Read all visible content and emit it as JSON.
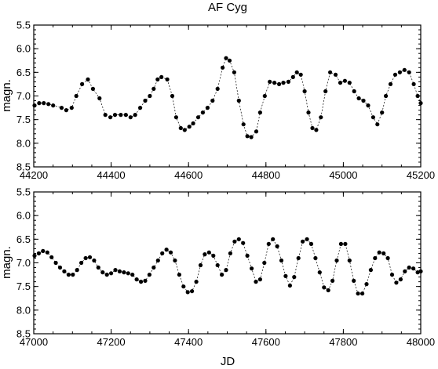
{
  "chart_data": [
    {
      "type": "scatter",
      "title": "AF Cyg",
      "xlabel": "",
      "ylabel": "magn.",
      "xlim": [
        44200,
        45200
      ],
      "ylim": [
        8.5,
        5.5
      ],
      "y_inverted": true,
      "xticks": [
        44200,
        44400,
        44600,
        44800,
        45000,
        45200
      ],
      "yticks": [
        "5.5",
        "6.0",
        "6.5",
        "7.0",
        "7.5",
        "8.0",
        "8.5"
      ],
      "connected": true,
      "grid": false,
      "series": [
        {
          "x": [
            44202,
            44214,
            44226,
            44238,
            44250,
            44272,
            44284,
            44298,
            44310,
            44325,
            44340,
            44353,
            44370,
            44385,
            44398,
            44410,
            44425,
            44438,
            44450,
            44462,
            44475,
            44488,
            44500,
            44510,
            44520,
            44530,
            44545,
            44558,
            44568,
            44580,
            44590,
            44602,
            44612,
            44625,
            44637,
            44649,
            44662,
            44675,
            44688,
            44697,
            44706,
            44718,
            44730,
            44742,
            44752,
            44762,
            44775,
            44785,
            44797,
            44810,
            44822,
            44834,
            44845,
            44858,
            44870,
            44880,
            44890,
            44900,
            44910,
            44920,
            44930,
            44942,
            44954,
            44966,
            44980,
            44992,
            45004,
            45016,
            45028,
            45040,
            45052,
            45064,
            45077,
            45088,
            45100,
            45110,
            45122,
            45134,
            45146,
            45158,
            45170,
            45182,
            45192,
            45200
          ],
          "y": [
            7.2,
            7.15,
            7.15,
            7.17,
            7.2,
            7.25,
            7.3,
            7.25,
            7.0,
            6.75,
            6.65,
            6.85,
            7.05,
            7.4,
            7.45,
            7.4,
            7.4,
            7.4,
            7.45,
            7.4,
            7.25,
            7.1,
            7.0,
            6.85,
            6.65,
            6.6,
            6.65,
            7.0,
            7.45,
            7.68,
            7.72,
            7.65,
            7.58,
            7.45,
            7.35,
            7.25,
            7.1,
            6.85,
            6.4,
            6.2,
            6.25,
            6.5,
            7.1,
            7.6,
            7.85,
            7.87,
            7.75,
            7.35,
            7.0,
            6.7,
            6.72,
            6.75,
            6.72,
            6.7,
            6.6,
            6.5,
            6.55,
            6.9,
            7.35,
            7.68,
            7.72,
            7.45,
            6.9,
            6.5,
            6.55,
            6.72,
            6.68,
            6.72,
            6.9,
            7.05,
            7.1,
            7.2,
            7.45,
            7.6,
            7.35,
            7.0,
            6.75,
            6.55,
            6.5,
            6.45,
            6.5,
            6.75,
            7.0,
            7.15
          ]
        }
      ]
    },
    {
      "type": "scatter",
      "title": "",
      "xlabel": "JD",
      "ylabel": "magn.",
      "xlim": [
        47000,
        48000
      ],
      "ylim": [
        8.5,
        5.5
      ],
      "y_inverted": true,
      "xticks": [
        47000,
        47200,
        47400,
        47600,
        47800,
        48000
      ],
      "yticks": [
        "5.5",
        "6.0",
        "6.5",
        "7.0",
        "7.5",
        "8.0",
        "8.5"
      ],
      "connected": true,
      "grid": false,
      "series": [
        {
          "x": [
            47002,
            47013,
            47024,
            47035,
            47046,
            47057,
            47068,
            47079,
            47090,
            47101,
            47112,
            47123,
            47134,
            47145,
            47156,
            47167,
            47178,
            47189,
            47200,
            47211,
            47222,
            47233,
            47244,
            47255,
            47266,
            47277,
            47288,
            47299,
            47310,
            47321,
            47332,
            47343,
            47354,
            47365,
            47376,
            47387,
            47398,
            47409,
            47420,
            47431,
            47442,
            47453,
            47464,
            47475,
            47486,
            47497,
            47508,
            47519,
            47530,
            47541,
            47552,
            47563,
            47574,
            47585,
            47596,
            47607,
            47618,
            47629,
            47640,
            47651,
            47662,
            47673,
            47684,
            47695,
            47706,
            47717,
            47728,
            47739,
            47750,
            47761,
            47772,
            47783,
            47794,
            47805,
            47816,
            47827,
            47838,
            47849,
            47860,
            47871,
            47882,
            47893,
            47904,
            47915,
            47926,
            47937,
            47948,
            47959,
            47970,
            47981,
            47992,
            48000
          ],
          "y": [
            6.85,
            6.8,
            6.75,
            6.78,
            6.88,
            7.0,
            7.1,
            7.18,
            7.25,
            7.25,
            7.15,
            7.0,
            6.9,
            6.88,
            6.95,
            7.1,
            7.2,
            7.25,
            7.22,
            7.15,
            7.18,
            7.2,
            7.22,
            7.25,
            7.35,
            7.4,
            7.38,
            7.25,
            7.1,
            6.95,
            6.8,
            6.72,
            6.78,
            6.95,
            7.25,
            7.5,
            7.62,
            7.6,
            7.4,
            7.05,
            6.82,
            6.78,
            6.85,
            7.05,
            7.25,
            7.15,
            6.8,
            6.55,
            6.5,
            6.58,
            6.85,
            7.12,
            7.4,
            7.35,
            7.0,
            6.6,
            6.5,
            6.65,
            6.95,
            7.28,
            7.48,
            7.3,
            6.9,
            6.55,
            6.5,
            6.6,
            6.9,
            7.2,
            7.52,
            7.58,
            7.38,
            6.95,
            6.6,
            6.6,
            6.95,
            7.38,
            7.65,
            7.65,
            7.45,
            7.15,
            6.9,
            6.78,
            6.8,
            6.9,
            7.25,
            7.42,
            7.35,
            7.18,
            7.1,
            7.12,
            7.2,
            7.18
          ]
        }
      ]
    }
  ]
}
